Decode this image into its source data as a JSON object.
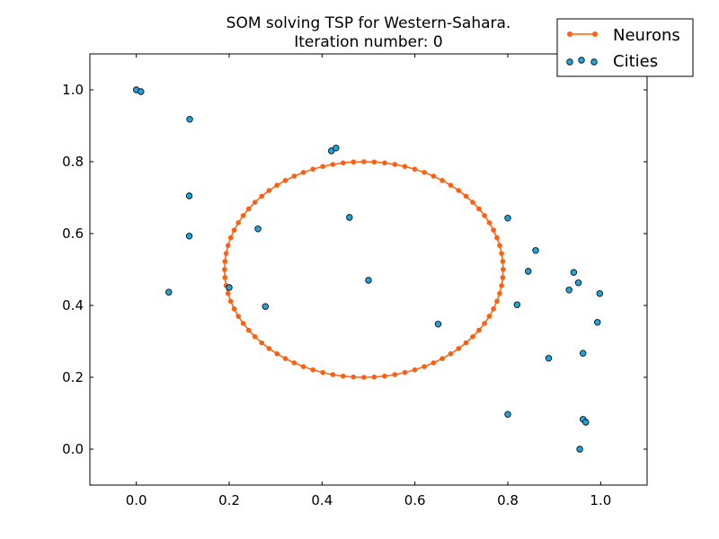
{
  "chart_data": {
    "type": "scatter",
    "title": "SOM solving TSP for Western-Sahara.",
    "subtitle": "Iteration number: 0",
    "xlabel": "",
    "ylabel": "",
    "xlim": [
      -0.1,
      1.1
    ],
    "ylim": [
      -0.1,
      1.1
    ],
    "xticks": [
      0.0,
      0.2,
      0.4,
      0.6,
      0.8,
      1.0
    ],
    "yticks": [
      0.0,
      0.2,
      0.4,
      0.6,
      0.8,
      1.0
    ],
    "xtick_labels": [
      "0.0",
      "0.2",
      "0.4",
      "0.6",
      "0.8",
      "1.0"
    ],
    "ytick_labels": [
      "0.0",
      "0.2",
      "0.4",
      "0.6",
      "0.8",
      "1.0"
    ],
    "grid": false,
    "legend_position": "top-right",
    "series": [
      {
        "name": "Neurons",
        "kind": "line-marker",
        "color": "#ff5f0f",
        "shape": "ellipse",
        "center": [
          0.49,
          0.5
        ],
        "radius_x": 0.3,
        "radius_y": 0.3,
        "count": 84
      },
      {
        "name": "Cities",
        "kind": "scatter",
        "color": "#1fa3d9",
        "points": [
          [
            0.0,
            1.0
          ],
          [
            0.01,
            0.995
          ],
          [
            0.115,
            0.918
          ],
          [
            0.114,
            0.705
          ],
          [
            0.114,
            0.593
          ],
          [
            0.07,
            0.437
          ],
          [
            0.2,
            0.45
          ],
          [
            0.262,
            0.613
          ],
          [
            0.278,
            0.397
          ],
          [
            0.42,
            0.83
          ],
          [
            0.43,
            0.838
          ],
          [
            0.459,
            0.645
          ],
          [
            0.5,
            0.47
          ],
          [
            0.65,
            0.348
          ],
          [
            0.8,
            0.643
          ],
          [
            0.82,
            0.402
          ],
          [
            0.844,
            0.495
          ],
          [
            0.86,
            0.553
          ],
          [
            0.888,
            0.253
          ],
          [
            0.8,
            0.097
          ],
          [
            0.932,
            0.443
          ],
          [
            0.942,
            0.492
          ],
          [
            0.952,
            0.463
          ],
          [
            0.998,
            0.433
          ],
          [
            0.993,
            0.353
          ],
          [
            0.962,
            0.267
          ],
          [
            0.962,
            0.083
          ],
          [
            0.968,
            0.075
          ],
          [
            0.955,
            0.0
          ]
        ]
      }
    ]
  }
}
